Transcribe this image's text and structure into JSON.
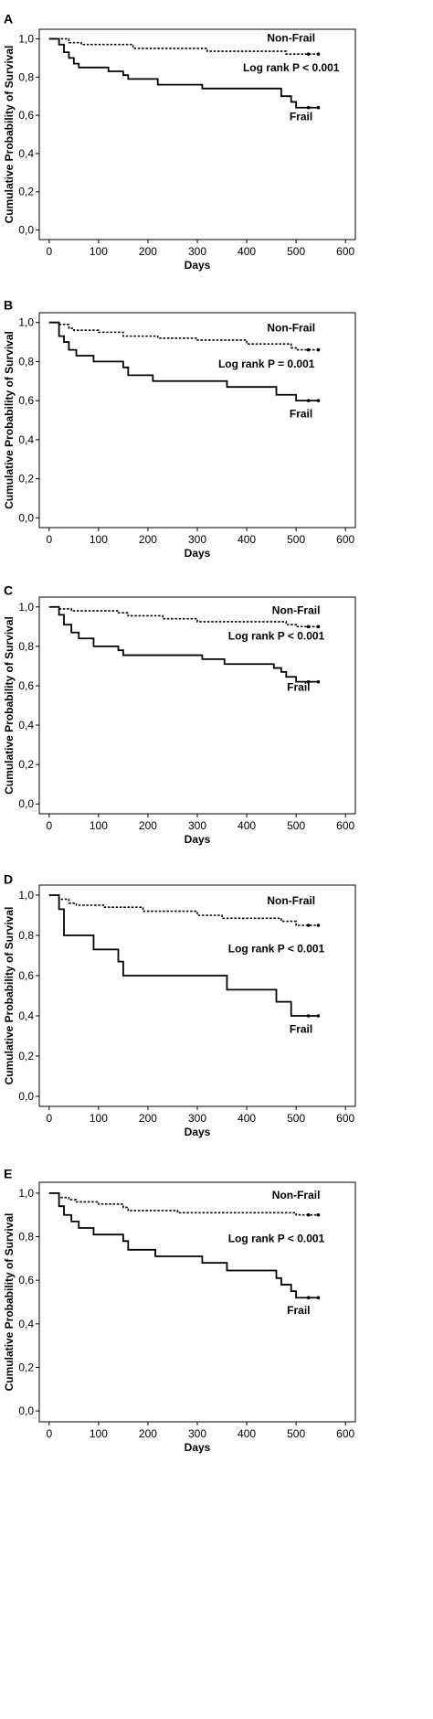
{
  "chart_data": [
    {
      "type": "line",
      "panel": "A",
      "xlabel": "Days",
      "ylabel": "Cumulative Probability of Survival",
      "xlim": [
        -20,
        620
      ],
      "ylim": [
        -0.05,
        1.05
      ],
      "x_ticks": [
        "0",
        "100",
        "200",
        "300",
        "400",
        "500",
        "600"
      ],
      "y_ticks": [
        "0,0",
        "0,2",
        "0,4",
        "0,6",
        "0,8",
        "1,0"
      ],
      "grid": false,
      "series": [
        {
          "name": "Non-Frail",
          "style": "dotted",
          "x": [
            0,
            40,
            65,
            170,
            320,
            480,
            530,
            545
          ],
          "y": [
            1.0,
            0.98,
            0.97,
            0.95,
            0.935,
            0.92,
            0.92,
            0.92
          ]
        },
        {
          "name": "Frail",
          "style": "solid",
          "x": [
            0,
            20,
            30,
            40,
            50,
            60,
            70,
            120,
            150,
            160,
            220,
            310,
            470,
            490,
            500,
            545
          ],
          "y": [
            1.0,
            0.97,
            0.93,
            0.9,
            0.87,
            0.85,
            0.85,
            0.83,
            0.81,
            0.79,
            0.76,
            0.74,
            0.7,
            0.67,
            0.64,
            0.64
          ]
        }
      ],
      "annotations": [
        {
          "text": "Non-Frail",
          "x": 490,
          "y": 0.985
        },
        {
          "text": "Log rank P < 0.001",
          "x": 490,
          "y": 0.83
        },
        {
          "text": "Frail",
          "x": 510,
          "y": 0.575
        }
      ]
    },
    {
      "type": "line",
      "panel": "B",
      "xlabel": "Days",
      "ylabel": "Cumulative Probability of Survival",
      "xlim": [
        -20,
        620
      ],
      "ylim": [
        -0.05,
        1.05
      ],
      "x_ticks": [
        "0",
        "100",
        "200",
        "300",
        "400",
        "500",
        "600"
      ],
      "y_ticks": [
        "0,0",
        "0,2",
        "0,4",
        "0,6",
        "0,8",
        "1,0"
      ],
      "grid": false,
      "series": [
        {
          "name": "Non-Frail",
          "style": "dotted",
          "x": [
            0,
            20,
            40,
            50,
            100,
            150,
            220,
            300,
            400,
            490,
            500,
            545
          ],
          "y": [
            1.0,
            0.99,
            0.97,
            0.96,
            0.95,
            0.93,
            0.92,
            0.91,
            0.89,
            0.87,
            0.86,
            0.86
          ]
        },
        {
          "name": "Frail",
          "style": "solid",
          "x": [
            0,
            20,
            30,
            40,
            55,
            90,
            150,
            160,
            210,
            360,
            460,
            500,
            545
          ],
          "y": [
            1.0,
            0.93,
            0.9,
            0.86,
            0.83,
            0.8,
            0.77,
            0.73,
            0.7,
            0.67,
            0.63,
            0.6,
            0.6
          ]
        }
      ],
      "annotations": [
        {
          "text": "Non-Frail",
          "x": 490,
          "y": 0.955
        },
        {
          "text": "Log rank P = 0.001",
          "x": 440,
          "y": 0.77
        },
        {
          "text": "Frail",
          "x": 510,
          "y": 0.515
        }
      ]
    },
    {
      "type": "line",
      "panel": "C",
      "xlabel": "Days",
      "ylabel": "Cumulative Probability of Survival",
      "xlim": [
        -20,
        620
      ],
      "ylim": [
        -0.05,
        1.05
      ],
      "x_ticks": [
        "0",
        "100",
        "200",
        "300",
        "400",
        "500",
        "600"
      ],
      "y_ticks": [
        "0,0",
        "0,2",
        "0,4",
        "0,6",
        "0,8",
        "1,0"
      ],
      "grid": false,
      "series": [
        {
          "name": "Non-Frail",
          "style": "dotted",
          "x": [
            0,
            20,
            45,
            140,
            160,
            230,
            300,
            480,
            500,
            545
          ],
          "y": [
            1.0,
            0.99,
            0.98,
            0.97,
            0.955,
            0.94,
            0.925,
            0.91,
            0.9,
            0.9
          ]
        },
        {
          "name": "Frail",
          "style": "solid",
          "x": [
            0,
            20,
            30,
            45,
            60,
            90,
            140,
            150,
            310,
            355,
            455,
            470,
            480,
            500,
            545
          ],
          "y": [
            1.0,
            0.96,
            0.91,
            0.87,
            0.84,
            0.8,
            0.78,
            0.755,
            0.735,
            0.71,
            0.69,
            0.67,
            0.645,
            0.62,
            0.62
          ]
        }
      ],
      "annotations": [
        {
          "text": "Non-Frail",
          "x": 500,
          "y": 0.965
        },
        {
          "text": "Log rank P < 0.001",
          "x": 460,
          "y": 0.835
        },
        {
          "text": "Frail",
          "x": 505,
          "y": 0.575
        }
      ]
    },
    {
      "type": "line",
      "panel": "D",
      "xlabel": "Days",
      "ylabel": "Cumulative Probability of Survival",
      "xlim": [
        -20,
        620
      ],
      "ylim": [
        -0.05,
        1.05
      ],
      "x_ticks": [
        "0",
        "100",
        "200",
        "300",
        "400",
        "500",
        "600"
      ],
      "y_ticks": [
        "0,0",
        "0,2",
        "0,4",
        "0,6",
        "0,8",
        "1,0"
      ],
      "grid": false,
      "series": [
        {
          "name": "Non-Frail",
          "style": "dotted",
          "x": [
            0,
            20,
            40,
            55,
            110,
            190,
            300,
            350,
            470,
            500,
            545
          ],
          "y": [
            1.0,
            0.98,
            0.96,
            0.95,
            0.94,
            0.92,
            0.9,
            0.885,
            0.87,
            0.85,
            0.85
          ]
        },
        {
          "name": "Frail",
          "style": "solid",
          "x": [
            0,
            20,
            30,
            90,
            140,
            150,
            360,
            460,
            490,
            545
          ],
          "y": [
            1.0,
            0.93,
            0.8,
            0.73,
            0.67,
            0.6,
            0.53,
            0.47,
            0.4,
            0.4
          ]
        }
      ],
      "annotations": [
        {
          "text": "Non-Frail",
          "x": 490,
          "y": 0.955
        },
        {
          "text": "Log rank P < 0.001",
          "x": 460,
          "y": 0.715
        },
        {
          "text": "Frail",
          "x": 510,
          "y": 0.315
        }
      ]
    },
    {
      "type": "line",
      "panel": "E",
      "xlabel": "Days",
      "ylabel": "Cumulative Probability of Survival",
      "xlim": [
        -20,
        620
      ],
      "ylim": [
        -0.05,
        1.05
      ],
      "x_ticks": [
        "0",
        "100",
        "200",
        "300",
        "400",
        "500",
        "600"
      ],
      "y_ticks": [
        "0,0",
        "0,2",
        "0,4",
        "0,6",
        "0,8",
        "1,0"
      ],
      "grid": false,
      "series": [
        {
          "name": "Non-Frail",
          "style": "dotted",
          "x": [
            0,
            20,
            40,
            55,
            100,
            150,
            160,
            260,
            480,
            500,
            545
          ],
          "y": [
            1.0,
            0.98,
            0.97,
            0.96,
            0.95,
            0.935,
            0.92,
            0.91,
            0.91,
            0.9,
            0.9
          ]
        },
        {
          "name": "Frail",
          "style": "solid",
          "x": [
            0,
            20,
            30,
            45,
            60,
            90,
            150,
            160,
            215,
            310,
            360,
            460,
            470,
            490,
            500,
            545
          ],
          "y": [
            1.0,
            0.94,
            0.9,
            0.87,
            0.84,
            0.81,
            0.78,
            0.74,
            0.71,
            0.68,
            0.645,
            0.61,
            0.58,
            0.55,
            0.52,
            0.52
          ]
        }
      ],
      "annotations": [
        {
          "text": "Non-Frail",
          "x": 500,
          "y": 0.975
        },
        {
          "text": "Log rank P < 0.001",
          "x": 460,
          "y": 0.775
        },
        {
          "text": "Frail",
          "x": 505,
          "y": 0.445
        }
      ]
    }
  ]
}
